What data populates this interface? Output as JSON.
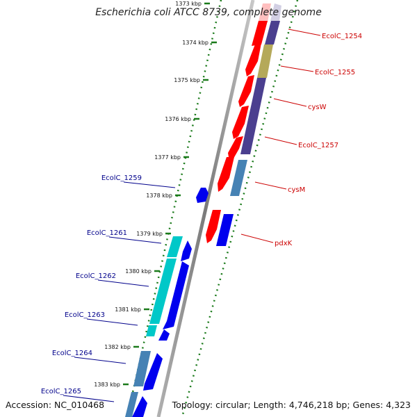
{
  "title": "Escherichia coli ATCC 8739, complete genome",
  "footer": {
    "accession": "Accession: NC_010468",
    "summary": "Topology: circular; Length: 4,746,218 bp; Genes: 4,323"
  },
  "ticks": [
    "1373 kbp",
    "1374 kbp",
    "1375 kbp",
    "1376 kbp",
    "1377 kbp",
    "1378 kbp",
    "1379 kbp",
    "1380 kbp",
    "1381 kbp",
    "1382 kbp",
    "1383 kbp"
  ],
  "forward_labels": [
    "EcolC_1254",
    "EcolC_1255",
    "cysW",
    "EcolC_1257",
    "cysM",
    "pdxK"
  ],
  "reverse_labels": [
    "EcolC_1259",
    "EcolC_1261",
    "EcolC_1262",
    "EcolC_1263",
    "EcolC_1264",
    "EcolC_1265"
  ],
  "colors": {
    "forward_label": "#cc0000",
    "reverse_label": "#00008b",
    "tick": "#1a7a1a",
    "backbone": "#8a8a8a",
    "cds_red": "#ff0000",
    "cds_purple": "#4b3f8f",
    "cds_olive": "#b5a95a",
    "cds_steel": "#4682b4",
    "cds_blue": "#0000ee",
    "cds_cyan": "#00c8c8"
  }
}
